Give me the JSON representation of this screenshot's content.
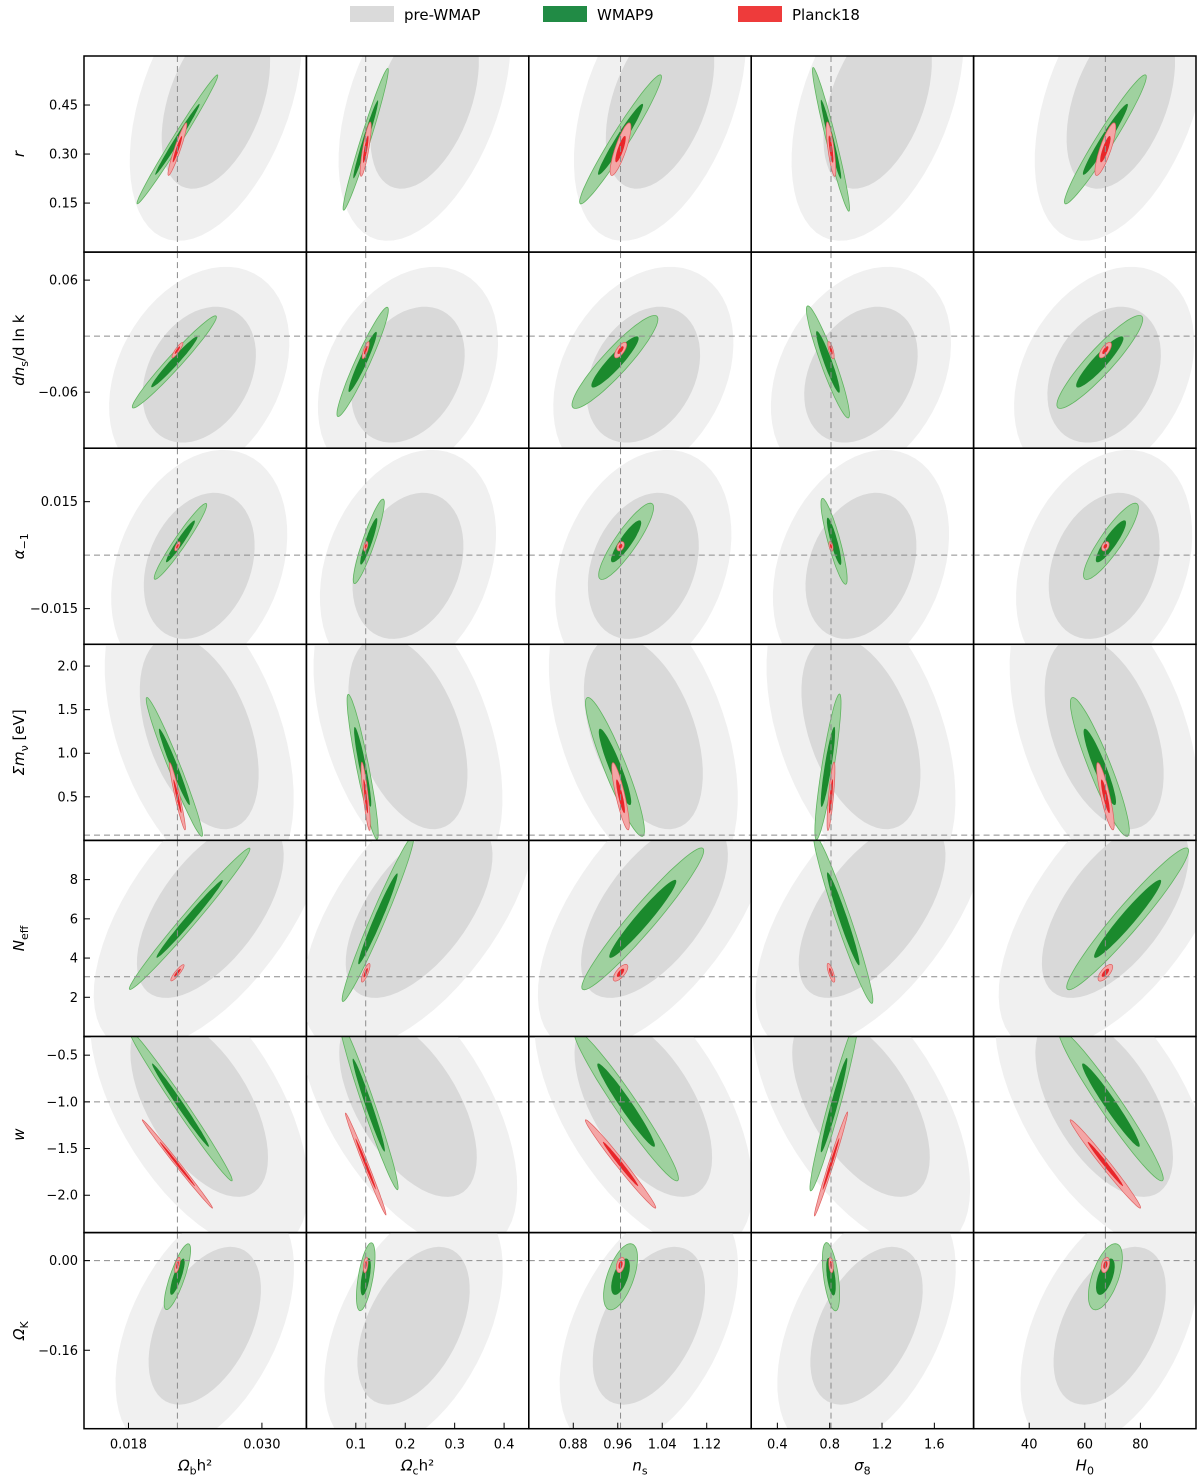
{
  "legend": {
    "items": [
      {
        "label": "pre-WMAP",
        "color": "#dadada"
      },
      {
        "label": "WMAP9",
        "color": "#218b45"
      },
      {
        "label": "Planck18",
        "color": "#ee3b3b"
      }
    ]
  },
  "colors": {
    "prewmap_outer": "#f0f0f0",
    "prewmap_inner": "#d9d9d9",
    "wmap9_outer": "#9fd19f",
    "wmap9_inner": "#1b8a2d",
    "planck_outer": "#f4a6a6",
    "planck_inner": "#e8262a",
    "fiducial_line": "#8c8c8c"
  },
  "chart_data": {
    "type": "contour-triangle",
    "columns": [
      {
        "param": "omega_b",
        "label": "Ωbh²",
        "label_main": "Ω",
        "label_sub": "b",
        "label_rest": "h²",
        "xlim": [
          0.014,
          0.034
        ],
        "ticks": [
          0.018,
          0.03
        ],
        "tick_labels": [
          "0.018",
          "0.030"
        ],
        "fiducial": 0.0224
      },
      {
        "param": "omega_c",
        "label": "Ωch²",
        "label_main": "Ω",
        "label_sub": "c",
        "label_rest": "h²",
        "xlim": [
          0.0,
          0.45
        ],
        "ticks": [
          0.1,
          0.2,
          0.3,
          0.4
        ],
        "tick_labels": [
          "0.1",
          "0.2",
          "0.3",
          "0.4"
        ],
        "fiducial": 0.12
      },
      {
        "param": "n_s",
        "label": "ns",
        "label_main": "n",
        "label_sub": "s",
        "label_rest": "",
        "xlim": [
          0.8,
          1.2
        ],
        "ticks": [
          0.88,
          0.96,
          1.04,
          1.12
        ],
        "tick_labels": [
          "0.88",
          "0.96",
          "1.04",
          "1.12"
        ],
        "fiducial": 0.965
      },
      {
        "param": "sigma_8",
        "label": "σ8",
        "label_main": "σ",
        "label_sub": "8",
        "label_rest": "",
        "xlim": [
          0.2,
          1.9
        ],
        "ticks": [
          0.4,
          0.8,
          1.2,
          1.6
        ],
        "tick_labels": [
          "0.4",
          "0.8",
          "1.2",
          "1.6"
        ],
        "fiducial": 0.81
      },
      {
        "param": "H_0",
        "label": "H0",
        "label_main": "H",
        "label_sub": "0",
        "label_rest": "",
        "xlim": [
          20,
          100
        ],
        "ticks": [
          40,
          60,
          80
        ],
        "tick_labels": [
          "40",
          "60",
          "80"
        ],
        "fiducial": 67.4
      }
    ],
    "rows": [
      {
        "param": "r",
        "label": "r",
        "label_main": "r",
        "label_sub": "",
        "label_rest": "",
        "ylim": [
          0,
          0.6
        ],
        "ticks": [
          0.15,
          0.3,
          0.45
        ],
        "tick_labels": [
          "0.15",
          "0.30",
          "0.45"
        ],
        "fiducial": null,
        "wmap9": {
          "center": [
            0.0,
            0.15
          ],
          "stretch": [
            0.08,
            0.75
          ],
          "slope": 0.55
        },
        "planck": {
          "center": [
            0.0,
            0.05
          ],
          "stretch": [
            0.05,
            0.28
          ],
          "slope": 0.3
        },
        "prewmap": {
          "center": [
            0.25,
            0.55
          ],
          "stretch": [
            0.5,
            1.1
          ],
          "slope": 0.3
        }
      },
      {
        "param": "dns_dlnk",
        "label": "dns/d ln k",
        "label_main": "dn",
        "label_sub": "s",
        "label_rest": "/d ln k",
        "ylim": [
          -0.12,
          0.09
        ],
        "ticks": [
          -0.06,
          0.06
        ],
        "tick_labels": [
          "−0.06",
          "0.06"
        ],
        "fiducial": 0.0,
        "wmap9": {
          "center": [
            -0.05,
            -0.12
          ],
          "stretch": [
            0.12,
            0.6
          ],
          "slope": 0.8
        },
        "planck": {
          "center": [
            0.0,
            0.0
          ],
          "stretch": [
            0.035,
            0.09
          ],
          "slope": 0.6
        },
        "prewmap": {
          "center": [
            0.1,
            -0.25
          ],
          "stretch": [
            0.55,
            0.85
          ],
          "slope": 0.4
        }
      },
      {
        "param": "alpha_m1",
        "label": "α−1",
        "label_main": "α",
        "label_sub": "−1",
        "label_rest": "",
        "ylim": [
          -0.025,
          0.03
        ],
        "ticks": [
          -0.015,
          0.015
        ],
        "tick_labels": [
          "−0.015",
          "0.015"
        ],
        "fiducial": 0.0,
        "wmap9": {
          "center": [
            0.05,
            0.05
          ],
          "stretch": [
            0.1,
            0.45
          ],
          "slope": 0.6
        },
        "planck": {
          "center": [
            0.0,
            0.0
          ],
          "stretch": [
            0.03,
            0.05
          ],
          "slope": 0.4
        },
        "prewmap": {
          "center": [
            0.1,
            -0.2
          ],
          "stretch": [
            0.55,
            0.9
          ],
          "slope": 0.3
        }
      },
      {
        "param": "sum_mnu",
        "label": "Σmν [eV]",
        "label_main": "Σm",
        "label_sub": "ν",
        "label_rest": " [eV]",
        "ylim": [
          0.0,
          2.25
        ],
        "ticks": [
          0.5,
          1.0,
          1.5,
          2.0
        ],
        "tick_labels": [
          "0.5",
          "1.0",
          "1.5",
          "2.0"
        ],
        "fiducial": 0.06,
        "wmap9": {
          "center": [
            -0.05,
            -0.25
          ],
          "stretch": [
            0.1,
            0.75
          ],
          "slope": -0.35
        },
        "planck": {
          "center": [
            0.0,
            -0.55
          ],
          "stretch": [
            0.04,
            0.35
          ],
          "slope": -0.2
        },
        "prewmap": {
          "center": [
            0.1,
            0.1
          ],
          "stretch": [
            0.55,
            1.2
          ],
          "slope": -0.3
        }
      },
      {
        "param": "N_eff",
        "label": "Neff",
        "label_main": "N",
        "label_sub": "eff",
        "label_rest": "",
        "ylim": [
          0,
          10
        ],
        "ticks": [
          2,
          4,
          6,
          8
        ],
        "tick_labels": [
          "2",
          "4",
          "6",
          "8"
        ],
        "fiducial": 3.046,
        "wmap9": {
          "center": [
            0.2,
            0.2
          ],
          "stretch": [
            0.12,
            0.9
          ],
          "slope": 0.75
        },
        "planck": {
          "center": [
            0.0,
            -0.35
          ],
          "stretch": [
            0.04,
            0.1
          ],
          "slope": 0.7
        },
        "prewmap": {
          "center": [
            0.2,
            0.3
          ],
          "stretch": [
            0.55,
            1.2
          ],
          "slope": 0.6
        }
      },
      {
        "param": "w",
        "label": "w",
        "label_main": "w",
        "label_sub": "",
        "label_rest": "",
        "ylim": [
          -2.4,
          -0.3
        ],
        "ticks": [
          -2.0,
          -1.5,
          -1.0,
          -0.5
        ],
        "tick_labels": [
          "−2.0",
          "−1.5",
          "−1.0",
          "−0.5"
        ],
        "fiducial": -1.0,
        "wmap9": {
          "center": [
            0.05,
            0.3
          ],
          "stretch": [
            0.1,
            0.9
          ],
          "slope": -0.6
        },
        "planck": {
          "center": [
            0.1,
            -0.3
          ],
          "stretch": [
            0.04,
            0.55
          ],
          "slope": -0.7
        },
        "prewmap": {
          "center": [
            0.1,
            0.3
          ],
          "stretch": [
            0.55,
            1.2
          ],
          "slope": -0.5
        }
      },
      {
        "param": "omega_K",
        "label": "ΩK",
        "label_main": "Ω",
        "label_sub": "K",
        "label_rest": "",
        "ylim": [
          -0.3,
          0.05
        ],
        "ticks": [
          -0.16,
          0.0
        ],
        "tick_labels": [
          "−0.16",
          "0.00"
        ],
        "fiducial": 0.0,
        "wmap9": {
          "center": [
            0.0,
            0.55
          ],
          "stretch": [
            0.12,
            0.35
          ],
          "slope": 0.3
        },
        "planck": {
          "center": [
            0.0,
            0.67
          ],
          "stretch": [
            0.035,
            0.08
          ],
          "slope": 0.2
        },
        "prewmap": {
          "center": [
            0.15,
            0.05
          ],
          "stretch": [
            0.5,
            1.0
          ],
          "slope": 0.4
        }
      }
    ],
    "series": [
      {
        "name": "pre-WMAP",
        "levels": [
          "68%",
          "95%"
        ]
      },
      {
        "name": "WMAP9",
        "levels": [
          "68%",
          "95%"
        ]
      },
      {
        "name": "Planck18",
        "levels": [
          "68%",
          "95%"
        ]
      }
    ]
  }
}
